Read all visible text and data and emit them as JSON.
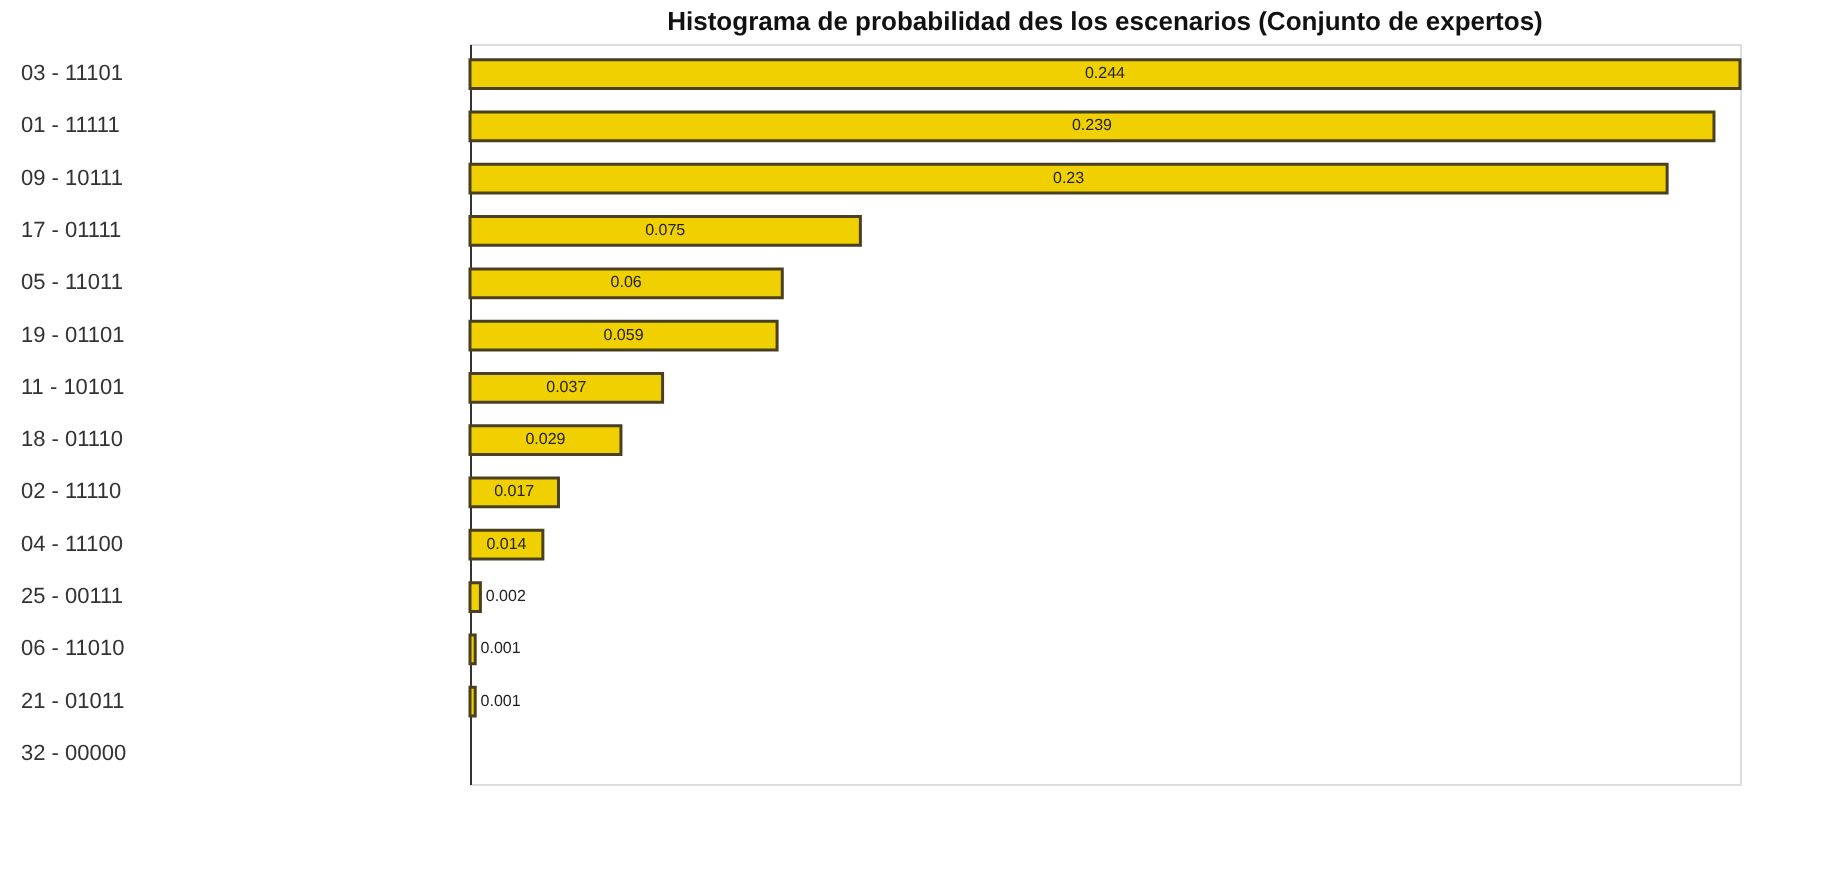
{
  "chart_data": {
    "type": "bar",
    "orientation": "horizontal",
    "title": "Histograma de probabilidad des los escenarios (Conjunto de expertos)",
    "categories": [
      "03 - 11101",
      "01 - 11111",
      "09 - 10111",
      "17 - 01111",
      "05 - 11011",
      "19 - 01101",
      "11 - 10101",
      "18 - 01110",
      "02 - 11110",
      "04 - 11100",
      "25 - 00111",
      "06 - 11010",
      "21 - 01011",
      "32 - 00000"
    ],
    "values": [
      0.244,
      0.239,
      0.23,
      0.075,
      0.06,
      0.059,
      0.037,
      0.029,
      0.017,
      0.014,
      0.002,
      0.001,
      0.001,
      null
    ],
    "color": "#f0d000",
    "xlim": [
      0,
      0.244
    ],
    "tick_labels": "y",
    "grid": false,
    "data_labels": true
  }
}
